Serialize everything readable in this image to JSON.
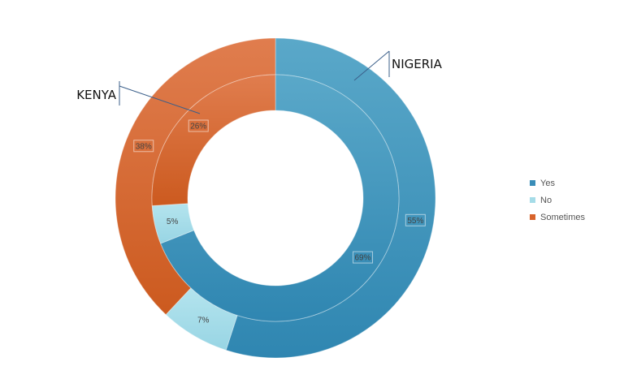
{
  "chart_data": {
    "type": "doughnut",
    "title": "",
    "categories": [
      "Yes",
      "No",
      "Sometimes"
    ],
    "colors": [
      "#3a8db8",
      "#a5dce8",
      "#d8632b"
    ],
    "series": [
      {
        "name": "NIGERIA",
        "ring": "outer",
        "values": [
          55,
          7,
          38
        ],
        "labels": [
          "55%",
          "7%",
          "38%"
        ]
      },
      {
        "name": "KENYA",
        "ring": "inner",
        "values": [
          69,
          5,
          26
        ],
        "labels": [
          "69%",
          "5%",
          "26%"
        ]
      }
    ],
    "legend": {
      "position": "right",
      "items": [
        "Yes",
        "No",
        "Sometimes"
      ]
    }
  }
}
